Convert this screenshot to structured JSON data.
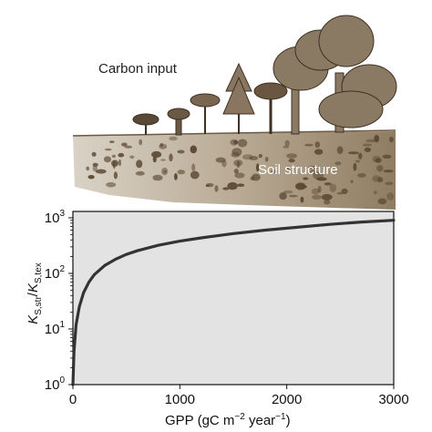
{
  "illustration": {
    "carbon_input_label": "Carbon input",
    "soil_structure_label": "Soil structure"
  },
  "chart_data": {
    "type": "line",
    "xlabel_main": "GPP (gC m",
    "xlabel_exp1": "−2",
    "xlabel_mid": " year",
    "xlabel_exp2": "−1",
    "xlabel_end": ")",
    "ylabel_k1": "K",
    "ylabel_sub1": "S,str",
    "ylabel_slash": "/",
    "ylabel_k2": "K",
    "ylabel_sub2": "S,tex",
    "xlim": [
      0,
      3000
    ],
    "ylim": [
      1,
      1300
    ],
    "yscale": "log",
    "x_ticks": [
      0,
      1000,
      2000,
      3000
    ],
    "x_tick_labels": [
      "0",
      "1000",
      "2000",
      "3000"
    ],
    "y_ticks": [
      1,
      10,
      100,
      1000
    ],
    "y_tick_bases": [
      "10",
      "10",
      "10",
      "10"
    ],
    "y_tick_exps": [
      "0",
      "1",
      "2",
      "3"
    ],
    "grid": false,
    "background": "#e3e3e3",
    "line_color": "#333333",
    "series": [
      {
        "x": [
          0,
          10,
          30,
          60,
          100,
          150,
          200,
          300,
          400,
          500,
          600,
          800,
          1000,
          1200,
          1500,
          1800,
          2000,
          2400,
          2700,
          3000
        ],
        "y": [
          1,
          4,
          12,
          25,
          45,
          70,
          95,
          140,
          180,
          220,
          255,
          320,
          380,
          435,
          520,
          600,
          650,
          760,
          840,
          900
        ]
      }
    ]
  }
}
